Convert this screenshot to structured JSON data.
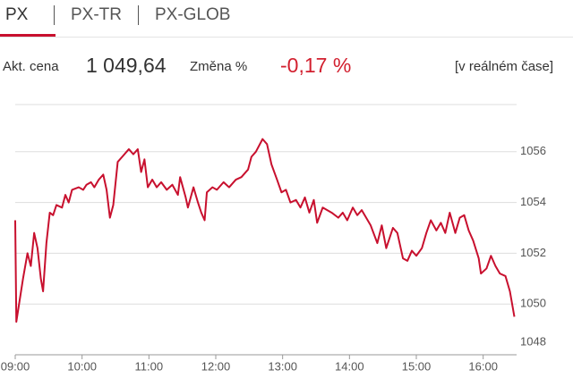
{
  "tabs": [
    "PX",
    "PX-TR",
    "PX-GLOB"
  ],
  "quote": {
    "price_label": "Akt. cena",
    "price": "1 049,64",
    "change_label": "Změna %",
    "change": "-0,17 %",
    "realtime": "[v reálném čase]"
  },
  "chart_data": {
    "type": "line",
    "color": "#c8102e",
    "xlim": [
      540,
      990
    ],
    "ylim": [
      1048,
      1058
    ],
    "xticks": [
      {
        "value": 540,
        "label": "09:00"
      },
      {
        "value": 600,
        "label": "10:00"
      },
      {
        "value": 660,
        "label": "11:00"
      },
      {
        "value": 720,
        "label": "12:00"
      },
      {
        "value": 780,
        "label": "13:00"
      },
      {
        "value": 840,
        "label": "14:00"
      },
      {
        "value": 900,
        "label": "15:00"
      },
      {
        "value": 960,
        "label": "16:00"
      }
    ],
    "yticks": [
      1048,
      1050,
      1052,
      1054,
      1056
    ],
    "grid": true,
    "x": [
      540,
      541,
      547,
      551,
      554,
      557,
      560,
      563,
      565,
      568,
      571,
      574,
      577,
      582,
      585,
      588,
      591,
      597,
      601,
      604,
      608,
      611,
      615,
      619,
      622,
      625,
      628,
      632,
      636,
      642,
      646,
      650,
      653,
      656,
      659,
      663,
      667,
      671,
      676,
      681,
      686,
      688,
      693,
      695,
      700,
      704,
      707,
      710,
      712,
      717,
      721,
      727,
      732,
      738,
      743,
      749,
      752,
      756,
      762,
      766,
      770,
      775,
      779,
      783,
      787,
      792,
      796,
      800,
      804,
      808,
      811,
      816,
      820,
      824,
      830,
      834,
      838,
      843,
      847,
      851,
      855,
      859,
      865,
      869,
      873,
      879,
      883,
      888,
      892,
      896,
      900,
      905,
      909,
      913,
      918,
      922,
      926,
      930,
      935,
      939,
      943,
      947,
      951,
      956,
      958,
      963,
      967,
      971,
      975,
      980,
      984,
      988
    ],
    "values": [
      1053.3,
      1049.3,
      1051.0,
      1052.0,
      1051.5,
      1052.8,
      1052.2,
      1051.0,
      1050.5,
      1052.4,
      1053.6,
      1053.5,
      1053.9,
      1053.8,
      1054.3,
      1054.0,
      1054.5,
      1054.6,
      1054.5,
      1054.7,
      1054.8,
      1054.6,
      1054.9,
      1055.1,
      1054.5,
      1053.4,
      1053.9,
      1055.6,
      1055.8,
      1056.1,
      1055.9,
      1056.1,
      1055.2,
      1055.7,
      1054.6,
      1054.9,
      1054.6,
      1054.8,
      1054.5,
      1054.7,
      1054.3,
      1055.0,
      1054.2,
      1053.8,
      1054.6,
      1054.0,
      1053.6,
      1053.3,
      1054.4,
      1054.6,
      1054.5,
      1054.8,
      1054.6,
      1054.9,
      1055.0,
      1055.3,
      1055.8,
      1056.0,
      1056.5,
      1056.3,
      1055.5,
      1054.9,
      1054.4,
      1054.5,
      1054.0,
      1054.1,
      1053.8,
      1054.2,
      1053.6,
      1054.1,
      1053.2,
      1053.8,
      1053.7,
      1053.6,
      1053.4,
      1053.6,
      1053.3,
      1053.8,
      1053.5,
      1053.7,
      1053.4,
      1053.1,
      1052.4,
      1053.1,
      1052.2,
      1053.0,
      1052.8,
      1051.8,
      1051.7,
      1052.1,
      1051.9,
      1052.2,
      1052.8,
      1053.3,
      1052.9,
      1053.2,
      1052.8,
      1053.6,
      1052.8,
      1053.4,
      1053.5,
      1052.9,
      1052.5,
      1051.8,
      1051.2,
      1051.4,
      1051.9,
      1051.5,
      1051.2,
      1051.1,
      1050.5,
      1049.5
    ]
  }
}
